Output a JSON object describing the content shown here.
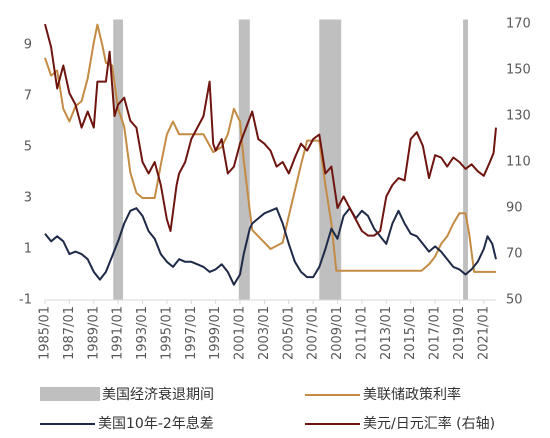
{
  "chart_data": {
    "type": "line",
    "xlim": [
      1985,
      2022
    ],
    "xticks": [
      {
        "value": 1985,
        "label": "1985/01"
      },
      {
        "value": 1987,
        "label": "1987/01"
      },
      {
        "value": 1989,
        "label": "1989/01"
      },
      {
        "value": 1991,
        "label": "1991/01"
      },
      {
        "value": 1993,
        "label": "1993/01"
      },
      {
        "value": 1995,
        "label": "1995/01"
      },
      {
        "value": 1997,
        "label": "1997/01"
      },
      {
        "value": 1999,
        "label": "1999/01"
      },
      {
        "value": 2001,
        "label": "2001/01"
      },
      {
        "value": 2003,
        "label": "2003/01"
      },
      {
        "value": 2005,
        "label": "2005/01"
      },
      {
        "value": 2007,
        "label": "2007/01"
      },
      {
        "value": 2009,
        "label": "2009/01"
      },
      {
        "value": 2011,
        "label": "2011/01"
      },
      {
        "value": 2013,
        "label": "2013/01"
      },
      {
        "value": 2015,
        "label": "2015/01"
      },
      {
        "value": 2017,
        "label": "2017/01"
      },
      {
        "value": 2019,
        "label": "2019/01"
      },
      {
        "value": 2021,
        "label": "2021/01"
      }
    ],
    "ylim": [
      -1,
      10
    ],
    "yticks": [
      -1,
      1,
      3,
      5,
      7,
      9
    ],
    "y2lim": [
      50,
      172
    ],
    "y2ticks": [
      50,
      70,
      90,
      110,
      130,
      150,
      170
    ],
    "recessions": {
      "name": "美国经济衰退期间",
      "color": "#bfbfbf",
      "ranges": [
        [
          1990.6,
          1991.4
        ],
        [
          2000.9,
          2001.8
        ],
        [
          2007.5,
          2009.3
        ],
        [
          2019.3,
          2019.7
        ]
      ]
    },
    "series": [
      {
        "name": "美联储政策利率",
        "color": "#c38b43",
        "x": [
          1985,
          1985.5,
          1986,
          1986.5,
          1987,
          1987.5,
          1988,
          1988.5,
          1989,
          1989.3,
          1989.7,
          1990,
          1990.5,
          1991,
          1991.5,
          1992,
          1992.5,
          1993,
          1994,
          1994.5,
          1995,
          1995.5,
          1996,
          1997,
          1998,
          1998.8,
          1999.5,
          2000,
          2000.5,
          2001,
          2001.3,
          2001.8,
          2002,
          2003,
          2003.5,
          2004.5,
          2005,
          2006,
          2006.5,
          2007.5,
          2008,
          2008.5,
          2008.9,
          2015.9,
          2016.5,
          2017,
          2017.5,
          2018,
          2018.5,
          2019,
          2019.5,
          2019.8,
          2020.2,
          2022
        ],
        "values": [
          8.5,
          7.8,
          8,
          6.5,
          6,
          6.6,
          6.8,
          7.7,
          9.1,
          9.8,
          9,
          8.3,
          8.2,
          6.5,
          5.8,
          4,
          3.2,
          3,
          3,
          4.3,
          5.5,
          6,
          5.5,
          5.5,
          5.5,
          4.8,
          5,
          5.5,
          6.5,
          6,
          4.5,
          2.5,
          1.75,
          1.25,
          1,
          1.25,
          2.3,
          4.3,
          5.25,
          5.25,
          3.5,
          2,
          0.15,
          0.15,
          0.4,
          0.7,
          1.2,
          1.5,
          2,
          2.4,
          2.4,
          1.6,
          0.1,
          0.1
        ]
      },
      {
        "name": "美国10年-2年息差",
        "color": "#1f2a48",
        "x": [
          1985,
          1985.5,
          1986,
          1986.5,
          1987,
          1987.5,
          1988,
          1988.5,
          1989,
          1989.5,
          1990,
          1990.5,
          1991,
          1991.5,
          1992,
          1992.5,
          1993,
          1993.5,
          1994,
          1994.5,
          1995,
          1995.5,
          1996,
          1996.5,
          1997,
          1997.5,
          1998,
          1998.5,
          1999,
          1999.5,
          2000,
          2000.5,
          2001,
          2001.3,
          2001.8,
          2002,
          2002.5,
          2003,
          2003.5,
          2004,
          2004.5,
          2005,
          2005.5,
          2006,
          2006.5,
          2007,
          2007.5,
          2008,
          2008.5,
          2009,
          2009.5,
          2010,
          2010.5,
          2011,
          2011.5,
          2012,
          2012.5,
          2013,
          2013.5,
          2014,
          2014.5,
          2015,
          2015.5,
          2016,
          2016.5,
          2017,
          2017.5,
          2018,
          2018.5,
          2019,
          2019.5,
          2020,
          2020.5,
          2021,
          2021.3,
          2021.7,
          2022
        ],
        "values": [
          1.6,
          1.3,
          1.5,
          1.3,
          0.8,
          0.9,
          0.8,
          0.6,
          0.1,
          -0.2,
          0.1,
          0.7,
          1.3,
          2,
          2.5,
          2.6,
          2.3,
          1.7,
          1.4,
          0.8,
          0.5,
          0.3,
          0.6,
          0.5,
          0.5,
          0.4,
          0.3,
          0.1,
          0.2,
          0.4,
          0.1,
          -0.4,
          0,
          0.8,
          1.8,
          2,
          2.2,
          2.4,
          2.5,
          2.6,
          2,
          1.2,
          0.5,
          0.1,
          -0.1,
          -0.1,
          0.3,
          1,
          1.8,
          1.4,
          2.3,
          2.6,
          2.2,
          2.5,
          2.3,
          1.8,
          1.5,
          1.2,
          2,
          2.5,
          2,
          1.6,
          1.5,
          1.2,
          0.9,
          1.1,
          0.9,
          0.6,
          0.3,
          0.2,
          0,
          0.2,
          0.5,
          1,
          1.5,
          1.2,
          0.6
        ]
      },
      {
        "name": "美元/日元汇率 (右轴)",
        "color": "#6e1510",
        "axis": "y2",
        "x": [
          1985,
          1985.5,
          1986,
          1986.5,
          1987,
          1987.5,
          1988,
          1988.5,
          1989,
          1989.3,
          1990,
          1990.3,
          1990.7,
          1991,
          1991.5,
          1992,
          1992.5,
          1993,
          1993.5,
          1994,
          1994.5,
          1995,
          1995.3,
          1995.8,
          1996,
          1996.5,
          1997,
          1997.5,
          1998,
          1998.5,
          1998.8,
          1999,
          1999.5,
          2000,
          2000.5,
          2001,
          2001.5,
          2002,
          2002.5,
          2003,
          2003.5,
          2004,
          2004.5,
          2005,
          2005.5,
          2006,
          2006.5,
          2007,
          2007.5,
          2008,
          2008.5,
          2009,
          2009.5,
          2010,
          2010.5,
          2011,
          2011.5,
          2012,
          2012.5,
          2013,
          2013.5,
          2014,
          2014.5,
          2015,
          2015.5,
          2016,
          2016.5,
          2017,
          2017.5,
          2018,
          2018.5,
          2019,
          2019.5,
          2020,
          2020.5,
          2021,
          2021.5,
          2021.8,
          2022
        ],
        "values": [
          170,
          160,
          142,
          152,
          140,
          135,
          125,
          132,
          125,
          145,
          145,
          158,
          130,
          135,
          138,
          128,
          125,
          110,
          105,
          110,
          100,
          85,
          80,
          100,
          105,
          110,
          120,
          125,
          130,
          145,
          118,
          115,
          120,
          105,
          108,
          118,
          125,
          132,
          120,
          118,
          115,
          108,
          110,
          105,
          112,
          118,
          115,
          120,
          122,
          105,
          108,
          90,
          95,
          90,
          85,
          80,
          78,
          78,
          80,
          95,
          100,
          103,
          102,
          120,
          123,
          117,
          103,
          113,
          112,
          108,
          112,
          110,
          107,
          109,
          106,
          104,
          110,
          114,
          125
        ]
      }
    ]
  }
}
